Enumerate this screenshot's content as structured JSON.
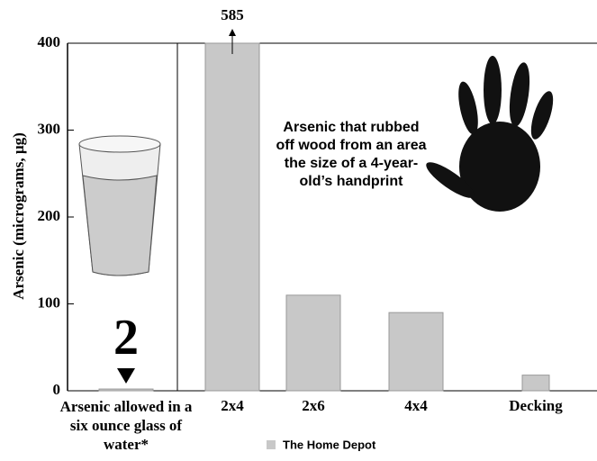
{
  "chart_data": {
    "type": "bar",
    "y_label": "Arsenic (micrograms, µg)",
    "annotation": "Arsenic that rubbed off wood from an area the size of a 4-year-old’s handprint",
    "categories": [
      "Arsenic allowed in a six ounce glass of water*",
      "2x4",
      "2x6",
      "4x4",
      "Decking"
    ],
    "series": [
      {
        "name": "The Home Depot",
        "color": "#c8c8c8",
        "values": [
          2,
          585,
          110,
          90,
          18
        ],
        "value_labels": [
          "2",
          "585",
          null,
          null,
          null
        ]
      }
    ],
    "ylim": [
      0,
      400
    ],
    "yticks": [
      0,
      100,
      200,
      300,
      400
    ],
    "legend": "bottom"
  }
}
